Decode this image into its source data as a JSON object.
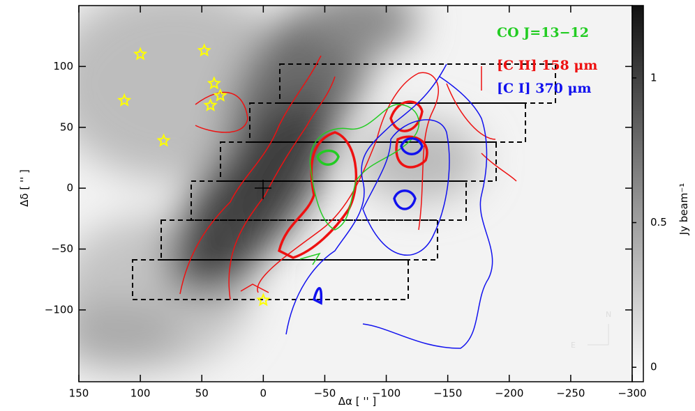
{
  "chart_data": {
    "type": "scatter",
    "xlabel": "Δα [ '' ]",
    "ylabel": "Δδ [ '' ]",
    "xlim": [
      150,
      -300
    ],
    "ylim": [
      -159,
      150
    ],
    "xticks": [
      150,
      100,
      50,
      0,
      {
        "value": -50,
        "label": "−50"
      },
      {
        "value": -100,
        "label": "−100"
      },
      {
        "value": -150,
        "label": "−150"
      },
      {
        "value": -200,
        "label": "−200"
      },
      {
        "value": -250,
        "label": "−250"
      },
      {
        "value": -300,
        "label": "−300"
      }
    ],
    "yticks": [
      100,
      50,
      0,
      {
        "value": -50,
        "label": "−50"
      },
      {
        "value": -100,
        "label": "−100"
      }
    ],
    "series": [
      {
        "color": "#ffff00",
        "x": [
          100,
          48,
          40,
          35,
          43,
          113,
          81,
          0
        ],
        "values": [
          110,
          113,
          86,
          76,
          68,
          72,
          39,
          -92
        ]
      }
    ],
    "legend": [
      {
        "label": "CO J=13−12",
        "color": "#22cc22"
      },
      {
        "label": "[C II] 158 μm",
        "color": "#ee1111"
      },
      {
        "label": "[C I] 370 μm",
        "color": "#1111ee"
      }
    ],
    "colorbar": {
      "label": "Jy beam⁻¹",
      "lim": [
        -0.05,
        1.25
      ],
      "ticks": [
        0,
        0.5,
        1
      ]
    },
    "compass": [
      "N",
      "E"
    ]
  }
}
